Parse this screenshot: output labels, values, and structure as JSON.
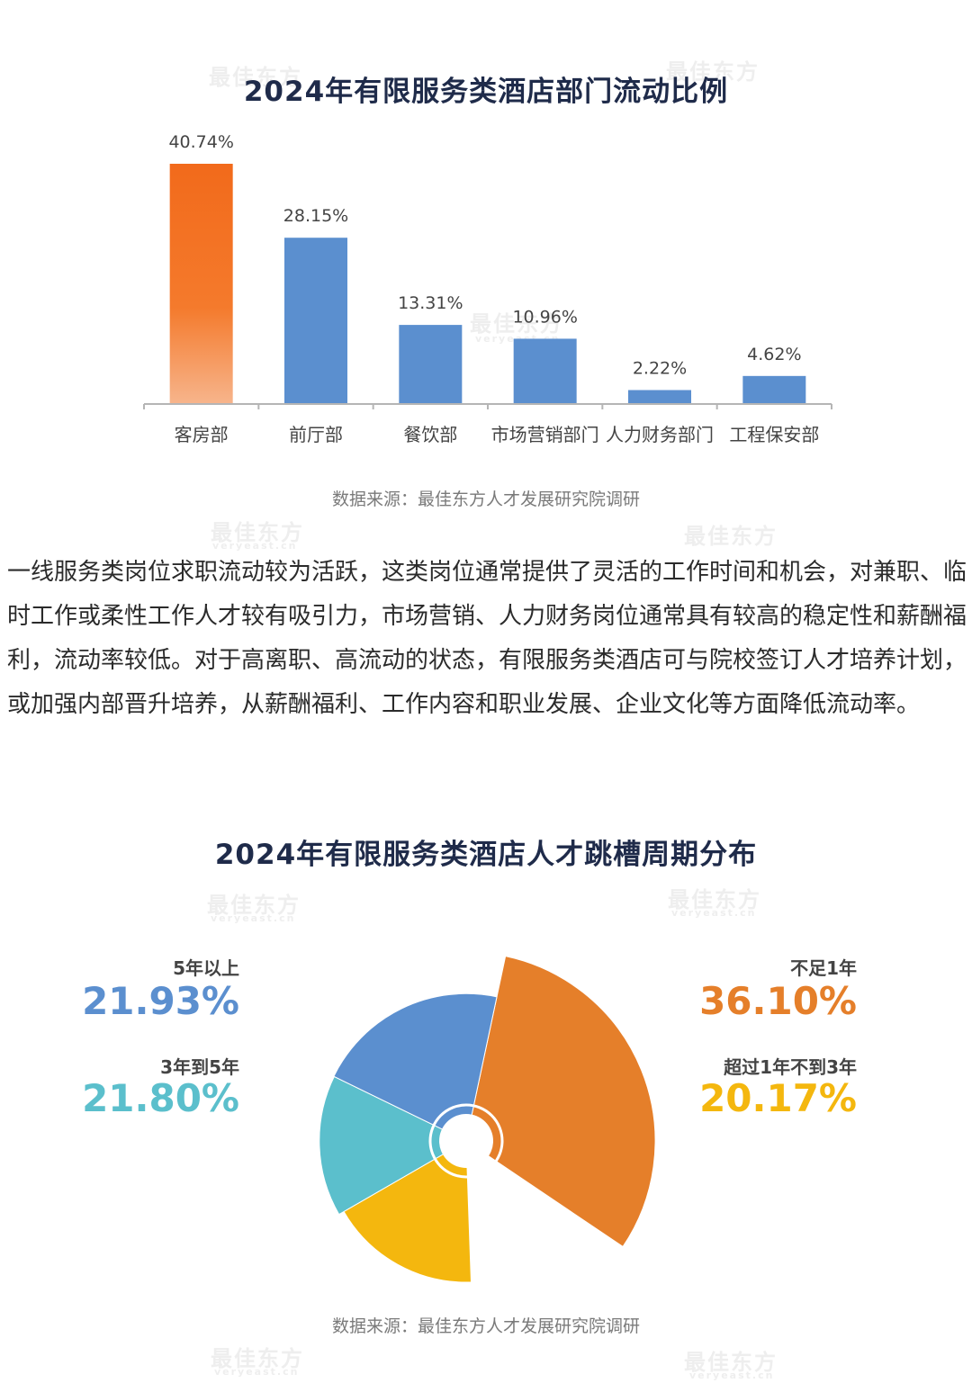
{
  "bar_chart": {
    "title": "2024年有限服务类酒店部门流动比例",
    "source": "数据来源：最佳东方人才发展研究院调研"
  },
  "paragraph": {
    "text": "一线服务类岗位求职流动较为活跃，这类岗位通常提供了灵活的工作时间和机会，对兼职、临时工作或柔性工作人才较有吸引力，市场营销、人力财务岗位通常具有较高的稳定性和薪酬福利，流动率较低。对于高离职、高流动的状态，有限服务类酒店可与院校签订人才培养计划，或加强内部晋升培养，从薪酬福利、工作内容和职业发展、企业文化等方面降低流动率。"
  },
  "rose_chart": {
    "title": "2024年有限服务类酒店人才跳槽周期分布",
    "source": "数据来源：最佳东方人才发展研究院调研",
    "legend": [
      {
        "label": "5年以上",
        "value_text": "21.93%",
        "color": "#5b8fcf"
      },
      {
        "label": "3年到5年",
        "value_text": "21.80%",
        "color": "#5bbfcc"
      },
      {
        "label": "不足1年",
        "value_text": "36.10%",
        "color": "#e57f2a"
      },
      {
        "label": "超过1年不到3年",
        "value_text": "20.17%",
        "color": "#f4b70e"
      }
    ]
  },
  "watermark": {
    "main": "最佳东方",
    "sub": "veryeast.cn"
  },
  "chart_data": [
    {
      "type": "bar",
      "title": "2024年有限服务类酒店部门流动比例",
      "categories": [
        "客房部",
        "前厅部",
        "餐饮部",
        "市场营销部门",
        "人力财务部门",
        "工程保安部"
      ],
      "values": [
        40.74,
        28.15,
        13.31,
        10.96,
        2.22,
        4.62
      ],
      "value_labels": [
        "40.74%",
        "28.15%",
        "13.31%",
        "10.96%",
        "2.22%",
        "4.62%"
      ],
      "ylim": [
        0,
        42
      ],
      "highlight_color": "#f26a1b",
      "bar_color": "#5b8fcf",
      "grid": false
    },
    {
      "type": "pie",
      "subtype": "nightingale-rose",
      "title": "2024年有限服务类酒店人才跳槽周期分布",
      "categories": [
        "不足1年",
        "超过1年不到3年",
        "3年到5年",
        "5年以上"
      ],
      "values": [
        36.1,
        20.17,
        21.8,
        21.93
      ],
      "colors": [
        "#e57f2a",
        "#f4b70e",
        "#5bbfcc",
        "#5b8fcf"
      ]
    }
  ]
}
